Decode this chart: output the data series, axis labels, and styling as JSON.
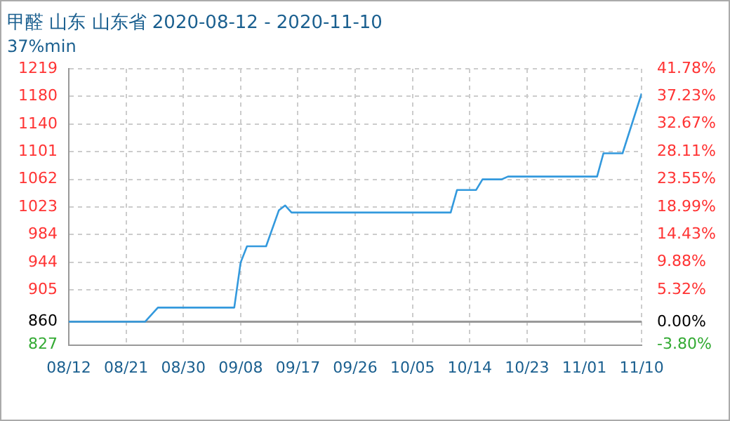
{
  "chart_data": {
    "type": "line",
    "title": "甲醛 山东 山东省 2020-08-12 - 2020-11-10",
    "subtitle": "37%min",
    "x": [
      "2020-08-12",
      "2020-08-24",
      "2020-08-26",
      "2020-09-07",
      "2020-09-08",
      "2020-09-09",
      "2020-09-12",
      "2020-09-14",
      "2020-09-15",
      "2020-09-16",
      "2020-10-11",
      "2020-10-12",
      "2020-10-15",
      "2020-10-16",
      "2020-10-19",
      "2020-10-20",
      "2020-11-03",
      "2020-11-04",
      "2020-11-07",
      "2020-11-10"
    ],
    "series": [
      {
        "color": "#3399dd",
        "values": [
          860,
          860,
          880,
          880,
          944,
          967,
          967,
          1018,
          1025,
          1015,
          1015,
          1047,
          1047,
          1062,
          1062,
          1066,
          1066,
          1099,
          1099,
          1184
        ]
      }
    ],
    "xlim": [
      "2020-08-12",
      "2020-11-10"
    ],
    "xticks": [
      {
        "value": "2020-08-12",
        "label": "08/12"
      },
      {
        "value": "2020-08-21",
        "label": "08/21"
      },
      {
        "value": "2020-08-30",
        "label": "08/30"
      },
      {
        "value": "2020-09-08",
        "label": "09/08"
      },
      {
        "value": "2020-09-17",
        "label": "09/17"
      },
      {
        "value": "2020-09-26",
        "label": "09/26"
      },
      {
        "value": "2020-10-05",
        "label": "10/05"
      },
      {
        "value": "2020-10-14",
        "label": "10/14"
      },
      {
        "value": "2020-10-23",
        "label": "10/23"
      },
      {
        "value": "2020-11-01",
        "label": "11/01"
      },
      {
        "value": "2020-11-10",
        "label": "11/10"
      }
    ],
    "ylim": [
      827,
      1219
    ],
    "yticks": [
      827,
      860,
      905,
      944,
      984,
      1023,
      1062,
      1101,
      1140,
      1180,
      1219
    ],
    "y2lim": [
      -3.8,
      41.78
    ],
    "y2ticks": [
      {
        "value": -3.8,
        "label": "-3.80%"
      },
      {
        "value": 0,
        "label": "0.00%"
      },
      {
        "value": 5.32,
        "label": "5.32%"
      },
      {
        "value": 9.88,
        "label": "9.88%"
      },
      {
        "value": 14.43,
        "label": "14.43%"
      },
      {
        "value": 18.99,
        "label": "18.99%"
      },
      {
        "value": 23.55,
        "label": "23.55%"
      },
      {
        "value": 28.11,
        "label": "28.11%"
      },
      {
        "value": 32.67,
        "label": "32.67%"
      },
      {
        "value": 37.23,
        "label": "37.23%"
      },
      {
        "value": 41.78,
        "label": "41.78%"
      }
    ],
    "ref_lines": [
      {
        "axis": "y",
        "value": 860,
        "color": "#999999"
      }
    ],
    "grid": true,
    "legend": false,
    "marker": "none",
    "line_style": "solid"
  }
}
